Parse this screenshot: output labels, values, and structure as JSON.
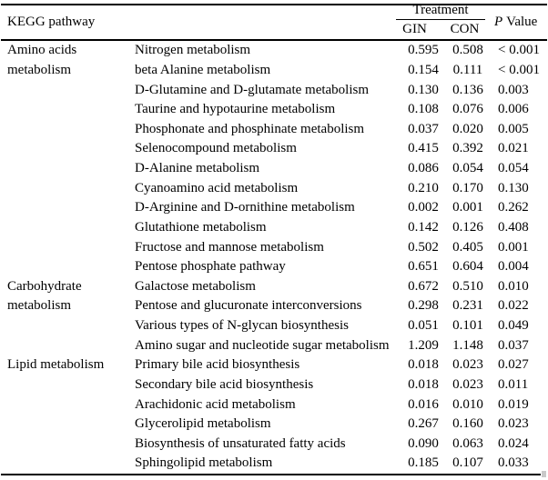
{
  "table": {
    "header": {
      "kegg": "KEGG pathway",
      "treatment": "Treatment",
      "gin": "GIN",
      "con": "CON",
      "p_symbol": "P",
      "p_text": "Value"
    },
    "colors": {
      "text": "#000000",
      "background": "#ffffff",
      "rule": "#000000"
    },
    "groups": [
      {
        "name": "Amino acids metabolism",
        "label_lines": [
          "Amino acids",
          "metabolism"
        ],
        "rows": [
          {
            "pathway": "Nitrogen metabolism",
            "gin": "0.595",
            "con": "0.508",
            "p": "< 0.001"
          },
          {
            "pathway": "beta Alanine metabolism",
            "gin": "0.154",
            "con": "0.111",
            "p": "< 0.001"
          },
          {
            "pathway": "D-Glutamine and D-glutamate metabolism",
            "gin": "0.130",
            "con": "0.136",
            "p": "0.003"
          },
          {
            "pathway": "Taurine and hypotaurine metabolism",
            "gin": "0.108",
            "con": "0.076",
            "p": "0.006"
          },
          {
            "pathway": "Phosphonate and phosphinate metabolism",
            "gin": "0.037",
            "con": "0.020",
            "p": "0.005"
          },
          {
            "pathway": "Selenocompound metabolism",
            "gin": "0.415",
            "con": "0.392",
            "p": "0.021"
          },
          {
            "pathway": "D-Alanine metabolism",
            "gin": "0.086",
            "con": "0.054",
            "p": "0.054"
          },
          {
            "pathway": "Cyanoamino acid metabolism",
            "gin": "0.210",
            "con": "0.170",
            "p": "0.130"
          },
          {
            "pathway": "D-Arginine and D-ornithine metabolism",
            "gin": "0.002",
            "con": "0.001",
            "p": "0.262"
          },
          {
            "pathway": "Glutathione metabolism",
            "gin": "0.142",
            "con": "0.126",
            "p": "0.408"
          },
          {
            "pathway": "Fructose and mannose metabolism",
            "gin": "0.502",
            "con": "0.405",
            "p": "0.001"
          },
          {
            "pathway": "Pentose phosphate pathway",
            "gin": "0.651",
            "con": "0.604",
            "p": "0.004"
          }
        ]
      },
      {
        "name": "Carbohydrate metabolism",
        "label_lines": [
          "Carbohydrate",
          "metabolism"
        ],
        "rows": [
          {
            "pathway": "Galactose metabolism",
            "gin": "0.672",
            "con": "0.510",
            "p": "0.010"
          },
          {
            "pathway": "Pentose and glucuronate interconversions",
            "gin": "0.298",
            "con": "0.231",
            "p": "0.022"
          },
          {
            "pathway": "Various types of N-glycan biosynthesis",
            "gin": "0.051",
            "con": "0.101",
            "p": "0.049"
          },
          {
            "pathway": "Amino sugar and nucleotide sugar metabolism",
            "gin": "1.209",
            "con": "1.148",
            "p": "0.037"
          }
        ]
      },
      {
        "name": "Lipid metabolism",
        "label_lines": [
          "Lipid metabolism"
        ],
        "rows": [
          {
            "pathway": "Primary bile acid biosynthesis",
            "gin": "0.018",
            "con": "0.023",
            "p": "0.027"
          },
          {
            "pathway": "Secondary bile acid biosynthesis",
            "gin": "0.018",
            "con": "0.023",
            "p": "0.011"
          },
          {
            "pathway": "Arachidonic acid metabolism",
            "gin": "0.016",
            "con": "0.010",
            "p": "0.019"
          },
          {
            "pathway": "Glycerolipid metabolism",
            "gin": "0.267",
            "con": "0.160",
            "p": "0.023"
          },
          {
            "pathway": "Biosynthesis of unsaturated fatty acids",
            "gin": "0.090",
            "con": "0.063",
            "p": "0.024"
          },
          {
            "pathway": "Sphingolipid metabolism",
            "gin": "0.185",
            "con": "0.107",
            "p": "0.033"
          }
        ]
      }
    ]
  }
}
